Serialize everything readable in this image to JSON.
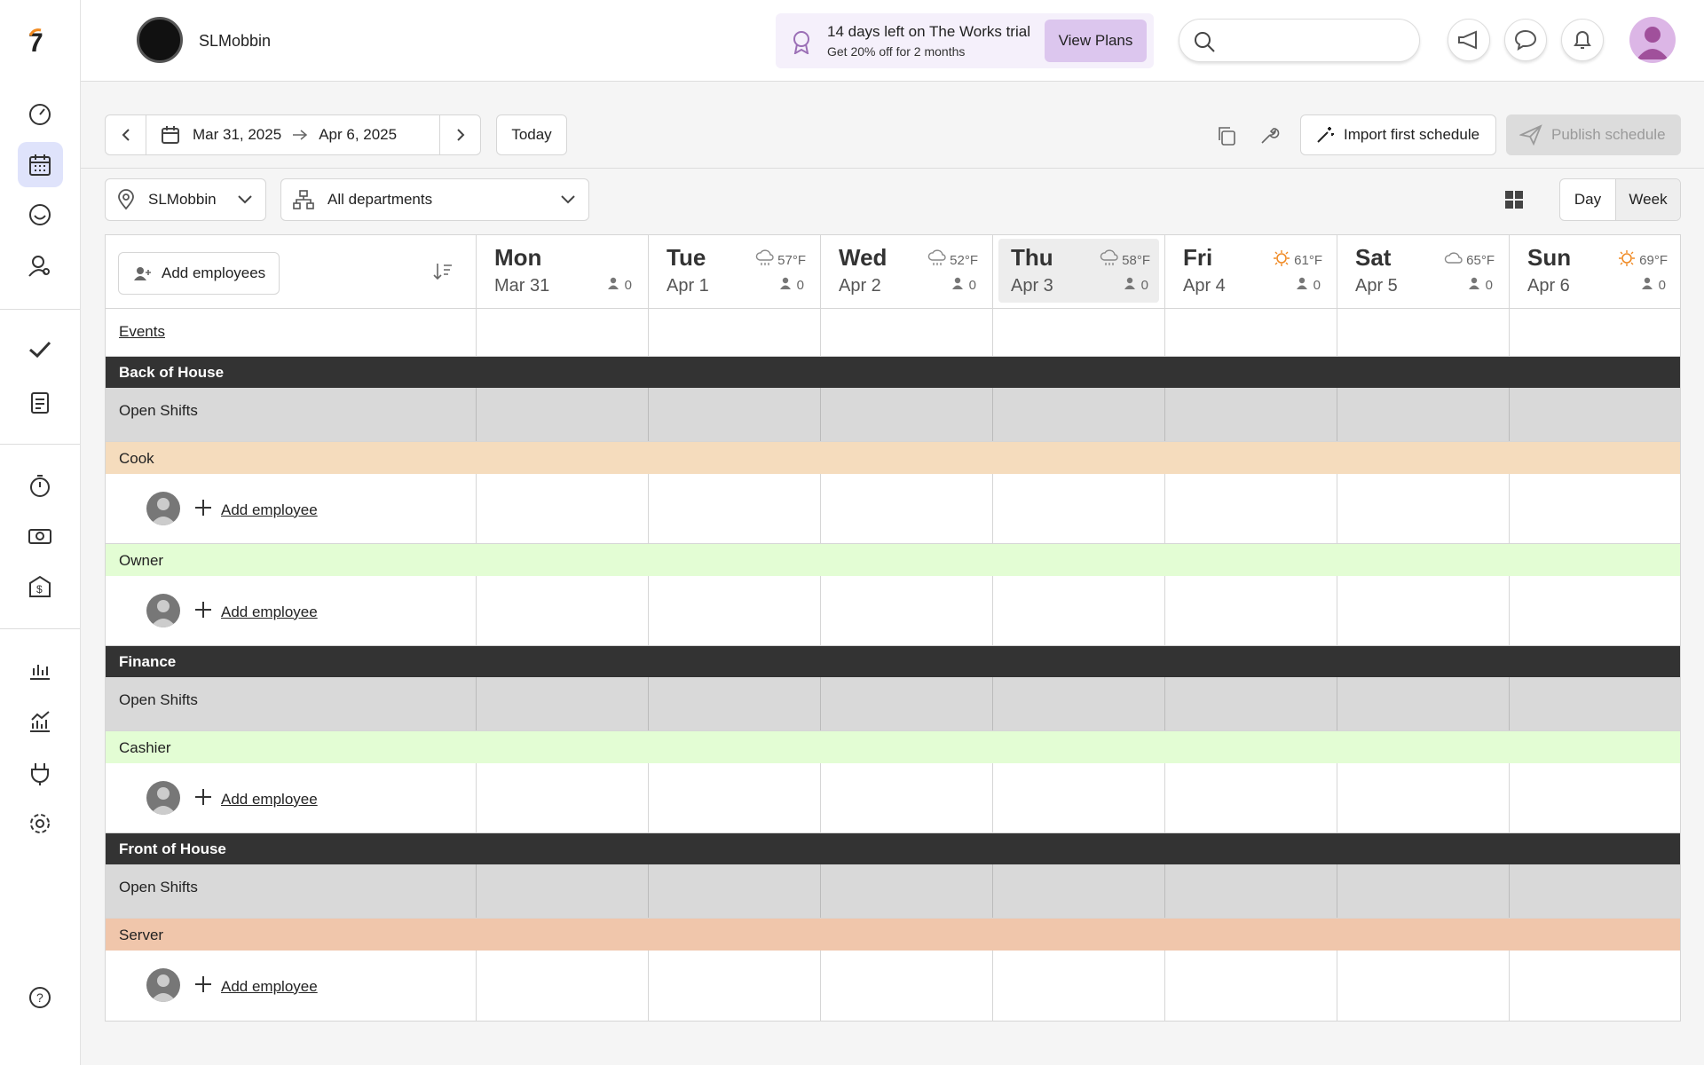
{
  "header": {
    "account_name": "SLMobbin",
    "trial_title": "14 days left on The Works trial",
    "trial_subtitle": "Get 20% off for 2 months",
    "trial_button": "View Plans"
  },
  "toolbar": {
    "start_date": "Mar 31, 2025",
    "end_date": "Apr 6, 2025",
    "today": "Today",
    "import": "Import first schedule",
    "publish": "Publish schedule",
    "location": "SLMobbin",
    "departments": "All departments",
    "view_day": "Day",
    "view_week": "Week"
  },
  "schedule": {
    "add_employees": "Add employees",
    "events": "Events",
    "days": [
      {
        "day": "Mon",
        "date": "Mar 31",
        "temp": null,
        "weather": null,
        "count": 0
      },
      {
        "day": "Tue",
        "date": "Apr 1",
        "temp": "57°F",
        "weather": "rain",
        "count": 0
      },
      {
        "day": "Wed",
        "date": "Apr 2",
        "temp": "52°F",
        "weather": "rain",
        "count": 0
      },
      {
        "day": "Thu",
        "date": "Apr 3",
        "temp": "58°F",
        "weather": "rain",
        "count": 0,
        "selected": true
      },
      {
        "day": "Fri",
        "date": "Apr 4",
        "temp": "61°F",
        "weather": "sun",
        "count": 0
      },
      {
        "day": "Sat",
        "date": "Apr 5",
        "temp": "65°F",
        "weather": "cloud",
        "count": 0
      },
      {
        "day": "Sun",
        "date": "Apr 6",
        "temp": "69°F",
        "weather": "sun",
        "count": 0
      }
    ],
    "groups": [
      {
        "name": "Back of House",
        "open_shifts": "Open Shifts",
        "roles": [
          {
            "name": "Cook",
            "color": "#f5dcbd",
            "action": "Add employee"
          },
          {
            "name": "Owner",
            "color": "#e3fdd4",
            "action": "Add employee"
          }
        ]
      },
      {
        "name": "Finance",
        "open_shifts": "Open Shifts",
        "roles": [
          {
            "name": "Cashier",
            "color": "#e3fdd4",
            "action": "Add employee"
          }
        ]
      },
      {
        "name": "Front of House",
        "open_shifts": "Open Shifts",
        "roles": [
          {
            "name": "Server",
            "color": "#f0c6ab",
            "action": "Add employee"
          }
        ]
      }
    ]
  }
}
